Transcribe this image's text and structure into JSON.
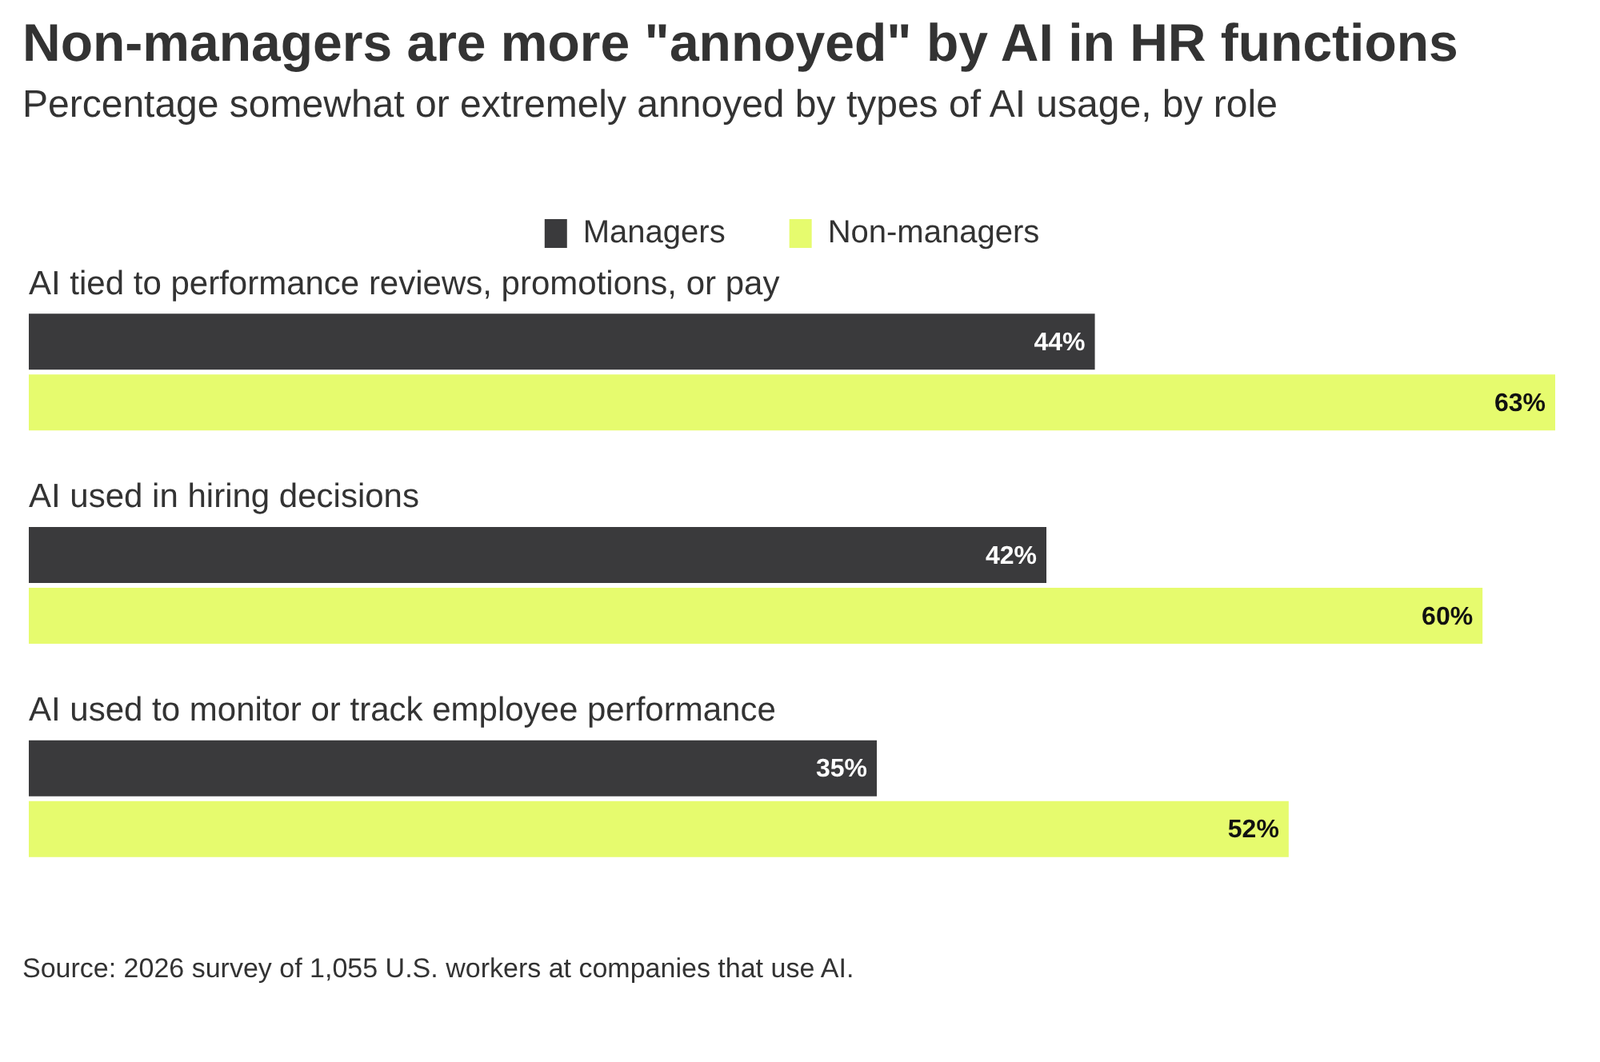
{
  "chart_data": {
    "type": "bar",
    "orientation": "horizontal",
    "title": "Non-managers are more \"annoyed\" by AI in HR functions",
    "subtitle": "Percentage somewhat or extremely annoyed by types of AI usage, by role",
    "categories": [
      "AI tied to performance reviews, promotions, or pay",
      "AI used in hiring decisions",
      "AI used to monitor or track employee performance"
    ],
    "series": [
      {
        "name": "Managers",
        "color": "#3a3a3c",
        "values": [
          44,
          42,
          35
        ],
        "value_labels": [
          "44%",
          "42%",
          "35%"
        ]
      },
      {
        "name": "Non-managers",
        "color": "#e6fb6e",
        "values": [
          63,
          60,
          52
        ],
        "value_labels": [
          "63%",
          "60%",
          "52%"
        ]
      }
    ],
    "legend": "top",
    "grid": false,
    "tick_labels": "y",
    "annotations": [
      "Source: 2026 survey of 1,055 U.S. workers at companies that use AI."
    ]
  }
}
